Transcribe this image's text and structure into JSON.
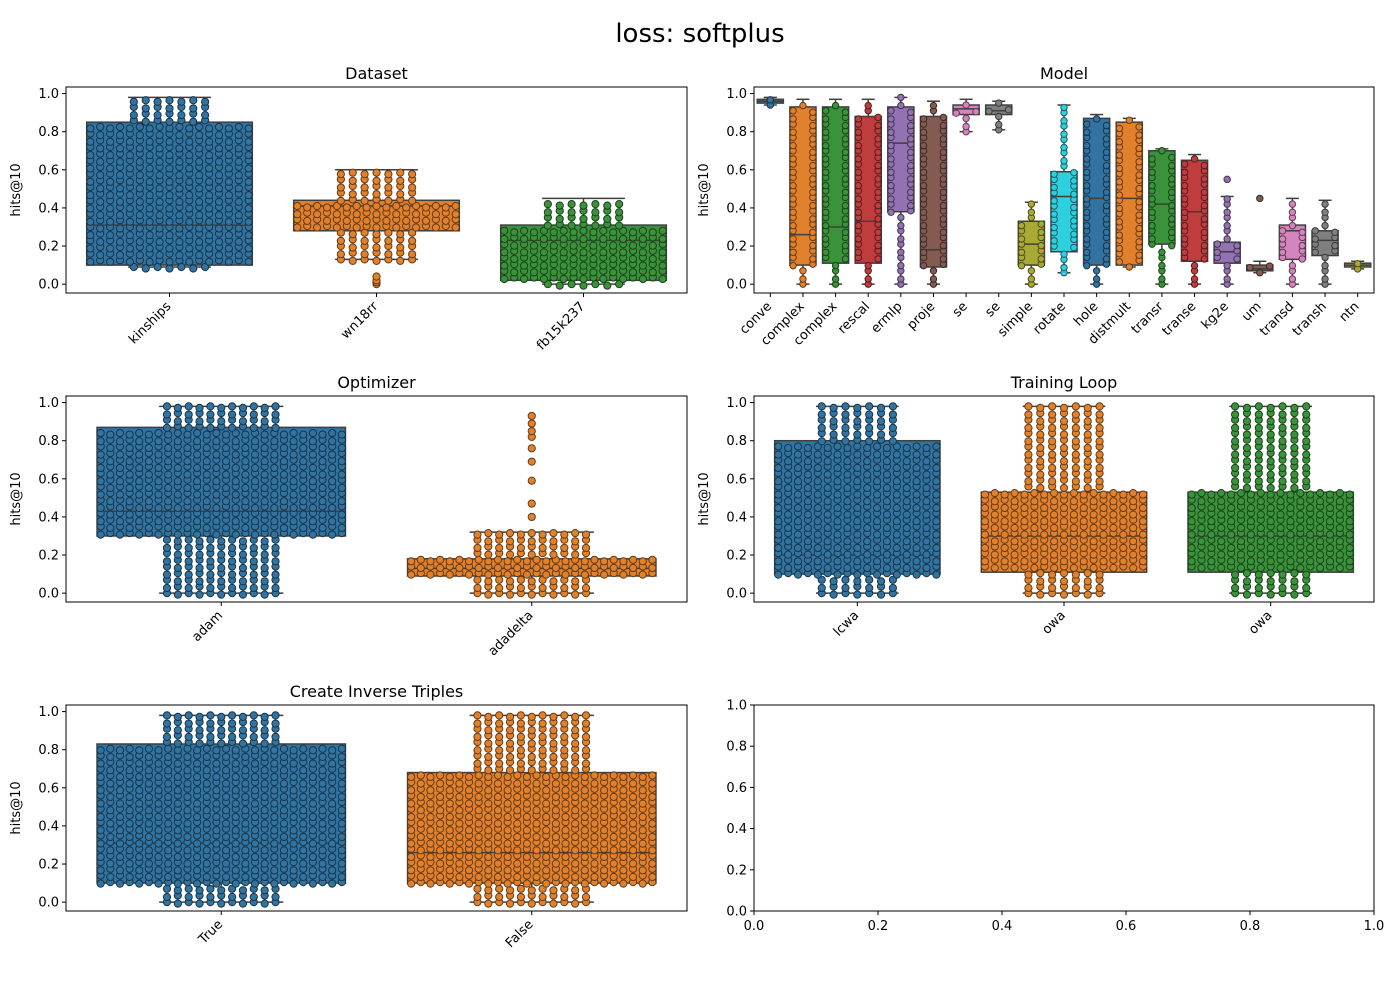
{
  "suptitle": "loss: softplus",
  "chart_data": [
    {
      "type": "box",
      "title": "Dataset",
      "xlabel": "",
      "ylabel": "hits@10",
      "ylim": [
        0,
        1
      ],
      "yticks": [
        "0.0",
        "0.2",
        "0.4",
        "0.6",
        "0.8",
        "1.0"
      ],
      "categories": [
        "kinships",
        "wn18rr",
        "fb15k237"
      ],
      "boxes": [
        {
          "q1": 0.1,
          "median": 0.31,
          "q3": 0.85,
          "whislo": 0.09,
          "whishi": 0.98,
          "color": "#3274a1",
          "fliers": []
        },
        {
          "q1": 0.28,
          "median": 0.41,
          "q3": 0.44,
          "whislo": 0.13,
          "whishi": 0.6,
          "color": "#e1812c",
          "fliers": [
            0.0,
            0.01,
            0.02,
            0.04
          ]
        },
        {
          "q1": 0.02,
          "median": 0.23,
          "q3": 0.31,
          "whislo": 0.0,
          "whishi": 0.45,
          "color": "#3a923a",
          "fliers": []
        }
      ]
    },
    {
      "type": "box",
      "title": "Model",
      "xlabel": "",
      "ylabel": "hits@10",
      "ylim": [
        0,
        1
      ],
      "yticks": [
        "0.0",
        "0.2",
        "0.4",
        "0.6",
        "0.8",
        "1.0"
      ],
      "categories": [
        "conve",
        "complex",
        "complex",
        "rescal",
        "ermlp",
        "proje",
        "se",
        "se",
        "simple",
        "rotate",
        "hole",
        "distmult",
        "transr",
        "transe",
        "kg2e",
        "um",
        "transd",
        "transh",
        "ntn"
      ],
      "boxes": [
        {
          "q1": 0.95,
          "median": 0.96,
          "q3": 0.97,
          "whislo": 0.94,
          "whishi": 0.98,
          "color": "#3274a1",
          "fliers": []
        },
        {
          "q1": 0.1,
          "median": 0.26,
          "q3": 0.93,
          "whislo": 0.0,
          "whishi": 0.97,
          "color": "#e1812c",
          "fliers": []
        },
        {
          "q1": 0.11,
          "median": 0.3,
          "q3": 0.93,
          "whislo": 0.0,
          "whishi": 0.97,
          "color": "#3a923a",
          "fliers": []
        },
        {
          "q1": 0.11,
          "median": 0.33,
          "q3": 0.88,
          "whislo": 0.0,
          "whishi": 0.97,
          "color": "#c03d3e",
          "fliers": []
        },
        {
          "q1": 0.38,
          "median": 0.74,
          "q3": 0.93,
          "whislo": 0.0,
          "whishi": 0.98,
          "color": "#9372b2",
          "fliers": []
        },
        {
          "q1": 0.09,
          "median": 0.18,
          "q3": 0.88,
          "whislo": 0.0,
          "whishi": 0.96,
          "color": "#845b53",
          "fliers": []
        },
        {
          "q1": 0.89,
          "median": 0.92,
          "q3": 0.94,
          "whislo": 0.8,
          "whishi": 0.97,
          "color": "#d684bd",
          "fliers": []
        },
        {
          "q1": 0.89,
          "median": 0.91,
          "q3": 0.94,
          "whislo": 0.81,
          "whishi": 0.96,
          "color": "#7f7f7f",
          "fliers": []
        },
        {
          "q1": 0.1,
          "median": 0.21,
          "q3": 0.33,
          "whislo": 0.0,
          "whishi": 0.43,
          "color": "#a9aa35",
          "fliers": []
        },
        {
          "q1": 0.17,
          "median": 0.46,
          "q3": 0.59,
          "whislo": 0.06,
          "whishi": 0.94,
          "color": "#2ed0dd",
          "fliers": []
        },
        {
          "q1": 0.1,
          "median": 0.45,
          "q3": 0.87,
          "whislo": 0.0,
          "whishi": 0.89,
          "color": "#3274a1",
          "fliers": []
        },
        {
          "q1": 0.1,
          "median": 0.45,
          "q3": 0.85,
          "whislo": 0.09,
          "whishi": 0.87,
          "color": "#e1812c",
          "fliers": []
        },
        {
          "q1": 0.21,
          "median": 0.42,
          "q3": 0.7,
          "whislo": 0.0,
          "whishi": 0.71,
          "color": "#3a923a",
          "fliers": []
        },
        {
          "q1": 0.12,
          "median": 0.38,
          "q3": 0.65,
          "whislo": 0.0,
          "whishi": 0.68,
          "color": "#c03d3e",
          "fliers": []
        },
        {
          "q1": 0.11,
          "median": 0.17,
          "q3": 0.22,
          "whislo": 0.0,
          "whishi": 0.46,
          "color": "#9372b2",
          "fliers": [
            0.55
          ]
        },
        {
          "q1": 0.07,
          "median": 0.08,
          "q3": 0.1,
          "whislo": 0.06,
          "whishi": 0.12,
          "color": "#845b53",
          "fliers": [
            0.45
          ]
        },
        {
          "q1": 0.13,
          "median": 0.28,
          "q3": 0.31,
          "whislo": 0.0,
          "whishi": 0.45,
          "color": "#d684bd",
          "fliers": []
        },
        {
          "q1": 0.15,
          "median": 0.23,
          "q3": 0.28,
          "whislo": 0.0,
          "whishi": 0.44,
          "color": "#7f7f7f",
          "fliers": []
        },
        {
          "q1": 0.09,
          "median": 0.1,
          "q3": 0.11,
          "whislo": 0.08,
          "whishi": 0.12,
          "color": "#a9aa35",
          "fliers": []
        }
      ]
    },
    {
      "type": "box",
      "title": "Optimizer",
      "xlabel": "",
      "ylabel": "hits@10",
      "ylim": [
        0,
        1
      ],
      "yticks": [
        "0.0",
        "0.2",
        "0.4",
        "0.6",
        "0.8",
        "1.0"
      ],
      "categories": [
        "adam",
        "adadelta"
      ],
      "boxes": [
        {
          "q1": 0.3,
          "median": 0.43,
          "q3": 0.87,
          "whislo": 0.0,
          "whishi": 0.98,
          "color": "#3274a1",
          "fliers": []
        },
        {
          "q1": 0.09,
          "median": 0.13,
          "q3": 0.18,
          "whislo": 0.0,
          "whishi": 0.32,
          "color": "#e1812c",
          "fliers": [
            0.4,
            0.47,
            0.59,
            0.69,
            0.76,
            0.82,
            0.85,
            0.89,
            0.93
          ]
        }
      ]
    },
    {
      "type": "box",
      "title": "Training Loop",
      "xlabel": "",
      "ylabel": "hits@10",
      "ylim": [
        0,
        1
      ],
      "yticks": [
        "0.0",
        "0.2",
        "0.4",
        "0.6",
        "0.8",
        "1.0"
      ],
      "categories": [
        "lcwa",
        "owa",
        "owa"
      ],
      "boxes": [
        {
          "q1": 0.1,
          "median": 0.2,
          "q3": 0.8,
          "whislo": 0.0,
          "whishi": 0.98,
          "color": "#3274a1",
          "fliers": []
        },
        {
          "q1": 0.11,
          "median": 0.3,
          "q3": 0.53,
          "whislo": 0.0,
          "whishi": 0.98,
          "color": "#e1812c",
          "fliers": []
        },
        {
          "q1": 0.11,
          "median": 0.3,
          "q3": 0.53,
          "whislo": 0.0,
          "whishi": 0.98,
          "color": "#3a923a",
          "fliers": []
        }
      ]
    },
    {
      "type": "box",
      "title": "Create Inverse Triples",
      "xlabel": "",
      "ylabel": "hits@10",
      "ylim": [
        0,
        1
      ],
      "yticks": [
        "0.0",
        "0.2",
        "0.4",
        "0.6",
        "0.8",
        "1.0"
      ],
      "categories": [
        "True",
        "False"
      ],
      "boxes": [
        {
          "q1": 0.1,
          "median": 0.31,
          "q3": 0.83,
          "whislo": 0.0,
          "whishi": 0.98,
          "color": "#3274a1",
          "fliers": []
        },
        {
          "q1": 0.1,
          "median": 0.26,
          "q3": 0.68,
          "whislo": 0.0,
          "whishi": 0.98,
          "color": "#e1812c",
          "fliers": []
        }
      ]
    },
    {
      "type": "empty",
      "title": "",
      "xlim": [
        0,
        1
      ],
      "ylim": [
        0,
        1
      ],
      "xticks": [
        "0.0",
        "0.2",
        "0.4",
        "0.6",
        "0.8",
        "1.0"
      ],
      "yticks": [
        "0.0",
        "0.2",
        "0.4",
        "0.6",
        "0.8",
        "1.0"
      ]
    }
  ]
}
